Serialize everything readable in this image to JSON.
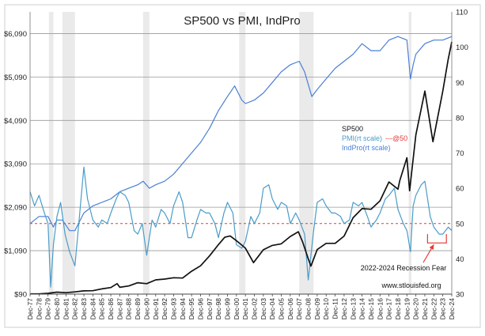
{
  "chart_data": {
    "type": "line",
    "title": "SP500 vs PMI, IndPro",
    "x_tick_labels": [
      "Dec-77",
      "Dec-78",
      "Dec-79",
      "Dec-80",
      "Dec-81",
      "Dec-82",
      "Dec-83",
      "Dec-84",
      "Dec-85",
      "Dec-86",
      "Dec-87",
      "Dec-88",
      "Dec-89",
      "Dec-90",
      "Dec-91",
      "Dec-92",
      "Dec-93",
      "Dec-94",
      "Dec-95",
      "Dec-96",
      "Dec-97",
      "Dec-98",
      "Dec-99",
      "Dec-00",
      "Dec-01",
      "Dec-02",
      "Dec-03",
      "Dec-04",
      "Dec-05",
      "Dec-06",
      "Dec-07",
      "Dec-08",
      "Dec-09",
      "Dec-10",
      "Dec-11",
      "Dec-12",
      "Dec-13",
      "Dec-14",
      "Dec-15",
      "Dec-16",
      "Dec-17",
      "Dec-18",
      "Dec-19",
      "Dec-20",
      "Dec-21",
      "Dec-22",
      "Dec-23",
      "Dec-24"
    ],
    "y_left": {
      "ticks": [
        "$90",
        "$1,090",
        "$2,090",
        "$3,090",
        "$4,090",
        "$5,090",
        "$6,090"
      ],
      "ylim": [
        90,
        6590
      ]
    },
    "y_right": {
      "ticks": [
        "30",
        "40",
        "50",
        "60",
        "70",
        "80",
        "90",
        "100",
        "110"
      ],
      "ylim": [
        30,
        110
      ]
    },
    "grid": true,
    "legend": [
      {
        "label": "SP500",
        "color": "#111111"
      },
      {
        "label": "PMI(rt scale)",
        "suffix": "---@50",
        "color": "#4a9cc9",
        "suffix_color": "#e53935"
      },
      {
        "label": "IndPro(rt scale)",
        "color": "#4a7fd4"
      }
    ],
    "reference_line": {
      "axis": "right",
      "value": 50,
      "color": "#e53935",
      "style": "dashed"
    },
    "recessions": [
      [
        1980.0,
        1980.5
      ],
      [
        1981.5,
        1982.9
      ],
      [
        1990.5,
        1991.2
      ],
      [
        2001.2,
        2001.9
      ],
      [
        2007.9,
        2009.5
      ],
      [
        2020.1,
        2020.4
      ]
    ],
    "series": [
      {
        "name": "SP500",
        "axis": "left",
        "color": "#111111",
        "x": [
          1977.9,
          1978.9,
          1979.9,
          1980.9,
          1981.9,
          1982.9,
          1983.9,
          1984.9,
          1985.9,
          1986.9,
          1987.6,
          1987.9,
          1988.9,
          1989.9,
          1990.9,
          1991.9,
          1992.9,
          1993.9,
          1994.9,
          1995.9,
          1996.9,
          1997.9,
          1998.9,
          1999.6,
          2000.2,
          2000.9,
          2001.9,
          2002.8,
          2003.9,
          2004.9,
          2005.9,
          2006.9,
          2007.8,
          2008.3,
          2008.9,
          2009.2,
          2009.9,
          2010.9,
          2011.9,
          2012.9,
          2013.9,
          2014.9,
          2015.9,
          2016.9,
          2017.9,
          2018.9,
          2019.1,
          2019.9,
          2020.2,
          2020.9,
          2021.9,
          2022.8,
          2023.9,
          2024.5,
          2024.9
        ],
        "values": [
          95,
          96,
          108,
          136,
          123,
          141,
          165,
          168,
          210,
          242,
          330,
          247,
          278,
          353,
          330,
          417,
          436,
          466,
          459,
          616,
          741,
          970,
          1229,
          1400,
          1430,
          1320,
          1148,
          815,
          1112,
          1212,
          1248,
          1418,
          1526,
          1280,
          903,
          735,
          1115,
          1258,
          1258,
          1426,
          1848,
          2059,
          2044,
          2239,
          2674,
          2507,
          2700,
          3231,
          2470,
          3756,
          4766,
          3600,
          4770,
          5500,
          5900
        ]
      },
      {
        "name": "PMI(rt scale)",
        "axis": "right",
        "color": "#4a9cc9",
        "x": [
          1977.9,
          1978.4,
          1978.9,
          1979.5,
          1979.9,
          1980.2,
          1980.5,
          1980.9,
          1981.3,
          1981.8,
          1982.3,
          1982.9,
          1983.4,
          1983.9,
          1984.3,
          1984.9,
          1985.5,
          1985.9,
          1986.5,
          1986.9,
          1987.5,
          1987.9,
          1988.5,
          1988.9,
          1989.5,
          1989.9,
          1990.4,
          1990.9,
          1991.5,
          1991.9,
          1992.5,
          1992.9,
          1993.5,
          1993.9,
          1994.5,
          1994.9,
          1995.5,
          1995.9,
          1996.5,
          1996.9,
          1997.5,
          1997.9,
          1998.5,
          1998.9,
          1999.5,
          1999.9,
          2000.5,
          2000.9,
          2001.5,
          2001.9,
          2002.5,
          2002.9,
          2003.5,
          2003.9,
          2004.5,
          2004.9,
          2005.5,
          2005.9,
          2006.5,
          2006.9,
          2007.5,
          2007.9,
          2008.5,
          2008.9,
          2009.5,
          2009.9,
          2010.5,
          2010.9,
          2011.5,
          2011.9,
          2012.5,
          2012.9,
          2013.5,
          2013.9,
          2014.5,
          2014.9,
          2015.5,
          2015.9,
          2016.5,
          2016.9,
          2017.5,
          2017.9,
          2018.5,
          2018.9,
          2019.5,
          2019.9,
          2020.3,
          2020.6,
          2020.9,
          2021.5,
          2021.9,
          2022.5,
          2022.9,
          2023.5,
          2023.9,
          2024.5,
          2024.9
        ],
        "values": [
          59,
          55,
          58,
          53,
          50,
          32,
          44,
          52,
          56,
          47,
          42,
          38,
          52,
          66,
          57,
          51,
          49,
          51,
          50,
          53,
          57,
          59,
          58,
          56,
          48,
          47,
          50,
          41,
          51,
          49,
          54,
          53,
          50,
          55,
          59,
          56,
          46,
          46,
          51,
          54,
          53,
          53,
          50,
          46,
          53,
          56,
          53,
          44,
          43,
          45,
          52,
          50,
          53,
          60,
          61,
          57,
          54,
          56,
          55,
          50,
          53,
          51,
          47,
          34,
          48,
          56,
          57,
          55,
          53,
          53,
          52,
          50,
          51,
          56,
          55,
          56,
          52,
          49,
          51,
          53,
          57,
          58,
          60,
          54,
          50,
          48,
          42,
          55,
          58,
          61,
          62,
          52,
          49,
          47,
          47,
          49,
          48
        ]
      },
      {
        "name": "IndPro(rt scale)",
        "axis": "right",
        "color": "#4a7fd4",
        "x": [
          1977.9,
          1978.9,
          1979.9,
          1980.5,
          1980.9,
          1981.5,
          1982.3,
          1982.9,
          1983.9,
          1984.9,
          1985.9,
          1986.9,
          1987.9,
          1988.9,
          1989.9,
          1990.5,
          1991.2,
          1991.9,
          1992.9,
          1993.9,
          1994.9,
          1995.9,
          1996.9,
          1997.9,
          1998.9,
          1999.9,
          2000.7,
          2001.5,
          2001.9,
          2002.9,
          2003.9,
          2004.9,
          2005.9,
          2006.9,
          2007.9,
          2008.5,
          2009.3,
          2009.9,
          2010.9,
          2011.9,
          2012.9,
          2013.9,
          2014.9,
          2015.9,
          2016.9,
          2017.9,
          2018.9,
          2019.9,
          2020.3,
          2020.6,
          2020.9,
          2021.9,
          2022.9,
          2023.9,
          2024.9
        ],
        "values": [
          50,
          52,
          52,
          49,
          51,
          51,
          48,
          48,
          53,
          55,
          56,
          57,
          59,
          60,
          61,
          62,
          60,
          61,
          62,
          64,
          67,
          70,
          73,
          77,
          82,
          86,
          89,
          85,
          84,
          85,
          87,
          90,
          93,
          95,
          96,
          93,
          86,
          88,
          91,
          94,
          96,
          98,
          101,
          99,
          99,
          102,
          103,
          102,
          91,
          95,
          98,
          101,
          102,
          102,
          103
        ]
      }
    ],
    "annotations": [
      {
        "text": "2022-2024 Recession Fear",
        "color": "#e53935"
      },
      {
        "text": "www.stlouisfed.org"
      }
    ]
  }
}
